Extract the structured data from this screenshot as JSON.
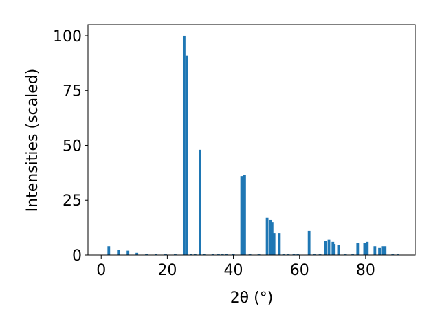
{
  "chart_data": {
    "type": "bar",
    "xlabel": "2θ (°)",
    "ylabel": "Intensities (scaled)",
    "x": [
      2.3,
      5.2,
      8.1,
      10.8,
      13.7,
      16.6,
      19.5,
      22.4,
      25.1,
      25.9,
      27.2,
      28.4,
      29.9,
      31.1,
      33.8,
      35.5,
      36.7,
      38,
      40,
      42.5,
      43.4,
      45,
      47.7,
      50.2,
      51.2,
      51.7,
      52.3,
      53.9,
      55.2,
      56.6,
      58.3,
      59.5,
      62.9,
      64.5,
      66.2,
      67.8,
      68.9,
      70.1,
      70.5,
      71.8,
      73.9,
      76.1,
      77.6,
      79.7,
      80.5,
      82.8,
      84.2,
      85.1,
      85.9,
      88.2,
      89.8
    ],
    "values": [
      4,
      2.5,
      2,
      1,
      0.5,
      0.5,
      0.3,
      0.3,
      100,
      91,
      0.5,
      0.5,
      48,
      0.5,
      0.5,
      0.3,
      0.3,
      0.5,
      0.5,
      36,
      36.5,
      0.3,
      0.3,
      17,
      16,
      15,
      10,
      10,
      0.3,
      0.3,
      0.3,
      0.3,
      11,
      0.3,
      0.3,
      6.5,
      7,
      6,
      5,
      4.5,
      0.3,
      0.3,
      5.5,
      5.5,
      6,
      4,
      3.5,
      4,
      4,
      0.3,
      0.3
    ],
    "color": "#1f77b4",
    "xlim": [
      -4,
      95
    ],
    "xticks": [
      0,
      20,
      40,
      60,
      80
    ],
    "ylim": [
      0,
      105
    ],
    "yticks": [
      0,
      25,
      50,
      75,
      100
    ]
  }
}
